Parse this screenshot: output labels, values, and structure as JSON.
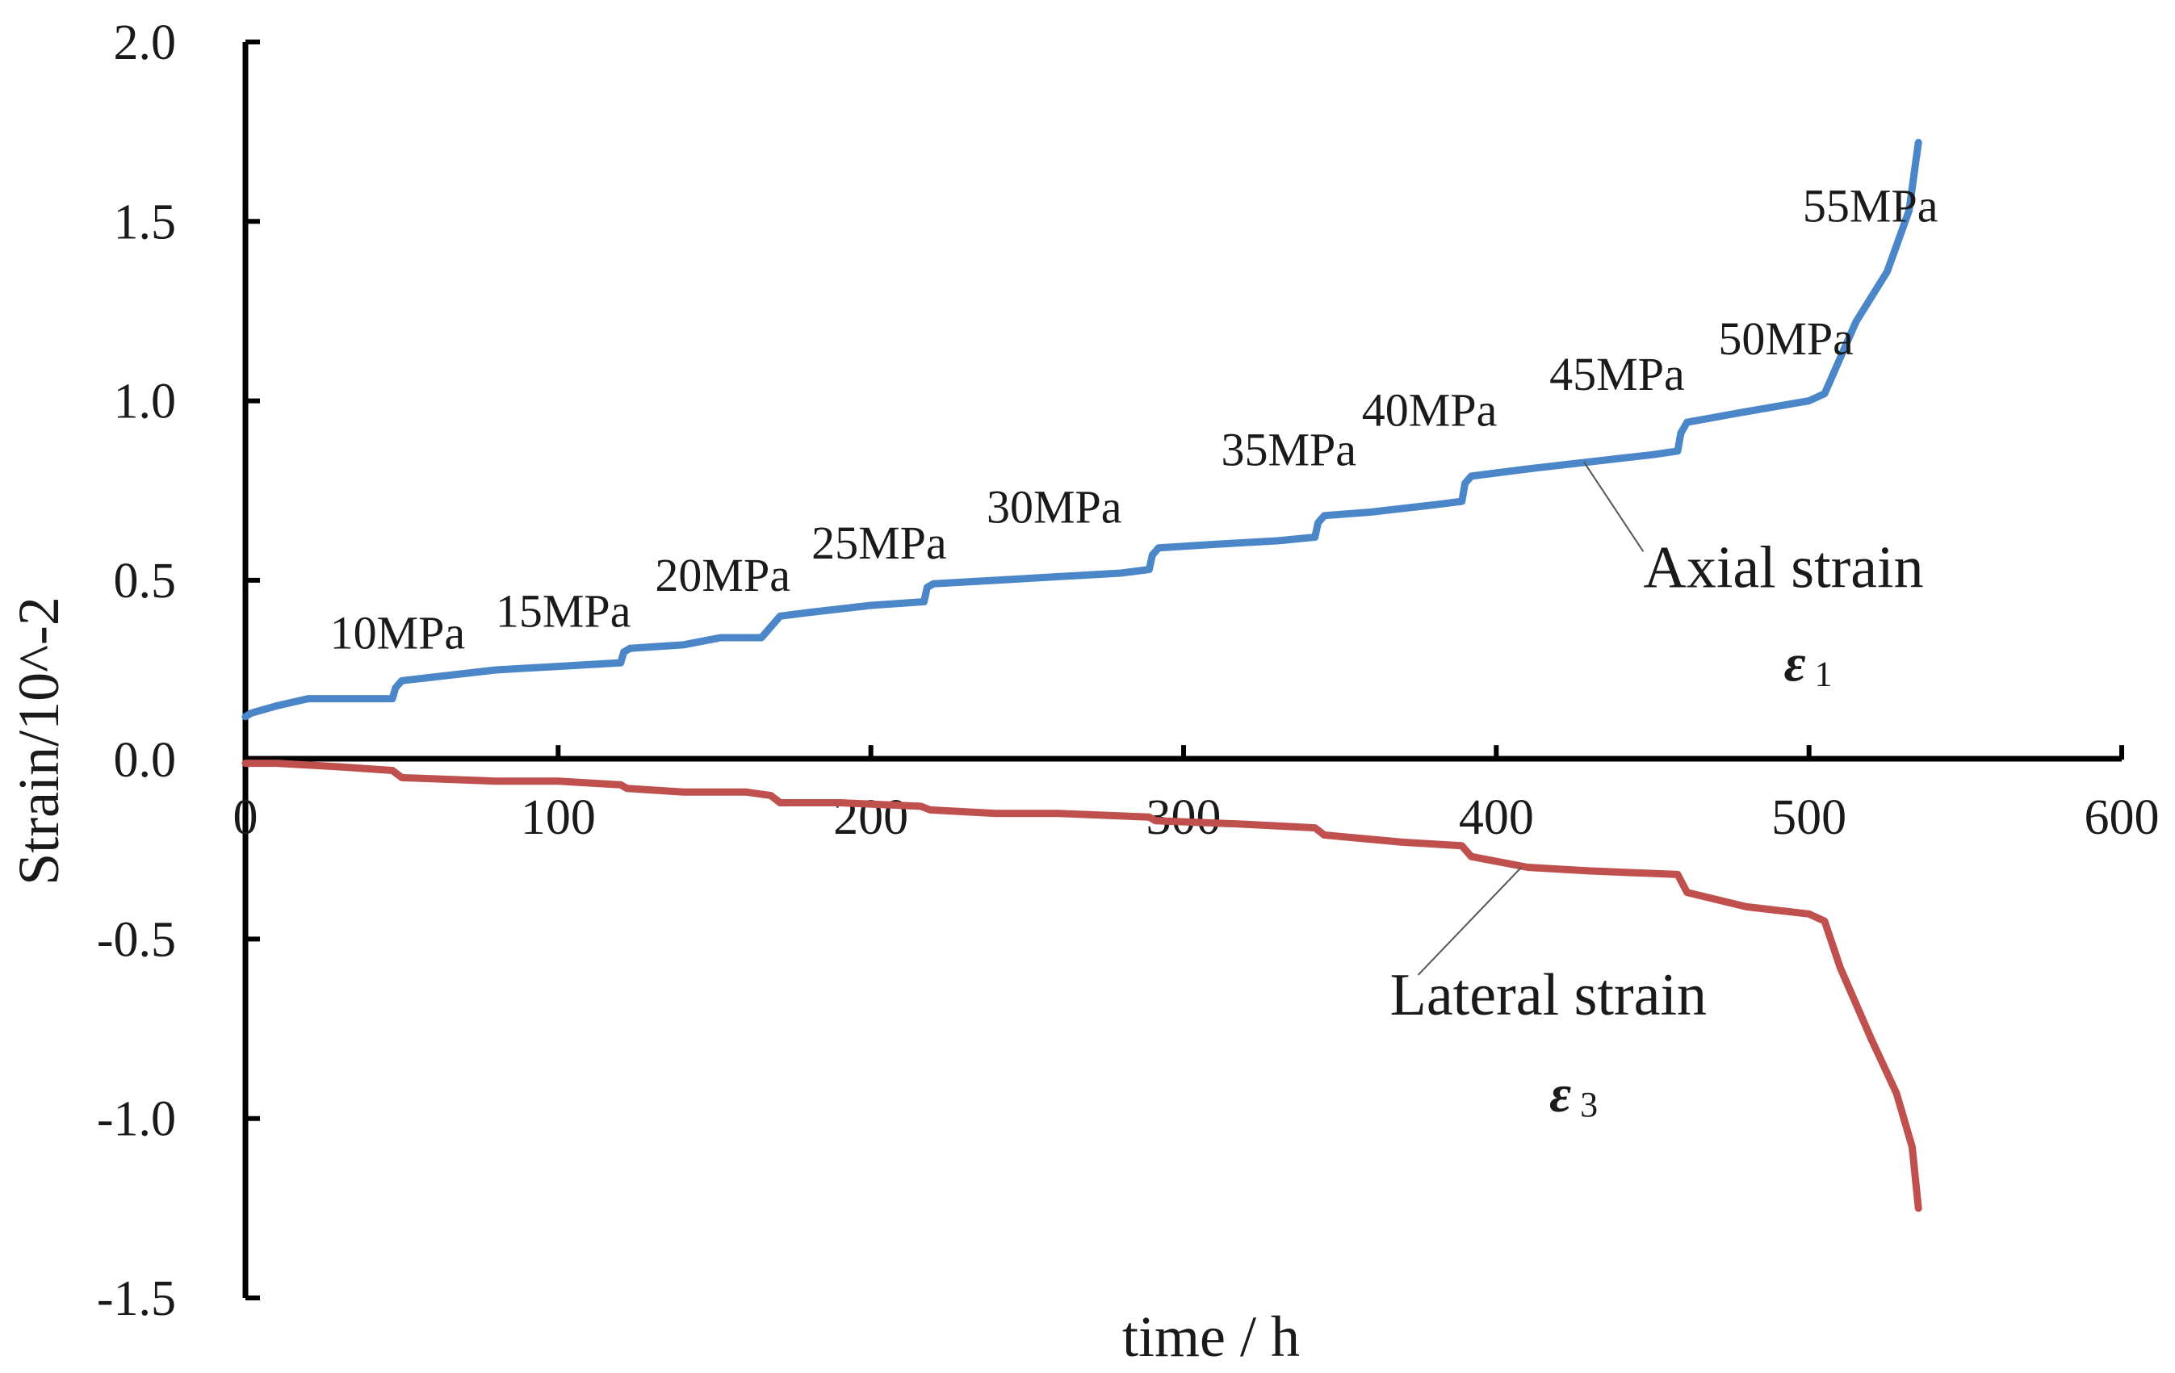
{
  "chart_data": {
    "type": "line",
    "xlabel": "time / h",
    "ylabel": "Strain/10^-2",
    "xlim": [
      0,
      600
    ],
    "ylim": [
      -1.5,
      2.0
    ],
    "x_ticks": [
      "0",
      "100",
      "200",
      "300",
      "400",
      "500",
      "600"
    ],
    "y_ticks": [
      "2.0",
      "1.5",
      "1.0",
      "0.5",
      "0.0",
      "-0.5",
      "-1.0",
      "-1.5"
    ],
    "grid": false,
    "colors": {
      "axial": "#4a86c8",
      "lateral": "#c0504d"
    },
    "series": [
      {
        "name": "Axial strain",
        "symbol": "ε",
        "subscript": "1",
        "x": [
          0,
          2,
          10,
          20,
          28,
          47,
          48,
          50,
          60,
          80,
          100,
          120,
          121,
          123,
          140,
          152,
          165,
          169,
          171,
          180,
          200,
          217,
          218,
          220,
          240,
          260,
          280,
          289,
          290,
          292,
          310,
          330,
          342,
          343,
          345,
          360,
          380,
          389,
          390,
          392,
          410,
          430,
          450,
          458,
          459,
          461,
          480,
          500,
          505,
          508,
          515,
          525,
          532,
          535
        ],
        "values": [
          0.12,
          0.13,
          0.15,
          0.17,
          0.17,
          0.17,
          0.2,
          0.22,
          0.23,
          0.25,
          0.26,
          0.27,
          0.3,
          0.31,
          0.32,
          0.34,
          0.34,
          0.38,
          0.4,
          0.41,
          0.43,
          0.44,
          0.48,
          0.49,
          0.5,
          0.51,
          0.52,
          0.53,
          0.57,
          0.59,
          0.6,
          0.61,
          0.62,
          0.66,
          0.68,
          0.69,
          0.71,
          0.72,
          0.77,
          0.79,
          0.81,
          0.83,
          0.85,
          0.86,
          0.91,
          0.94,
          0.97,
          1.0,
          1.02,
          1.08,
          1.22,
          1.36,
          1.53,
          1.72
        ]
      },
      {
        "name": "Lateral strain",
        "symbol": "ε",
        "subscript": "3",
        "x": [
          0,
          10,
          30,
          47,
          50,
          80,
          100,
          120,
          122,
          140,
          160,
          168,
          171,
          190,
          216,
          219,
          240,
          260,
          289,
          291,
          320,
          342,
          345,
          370,
          389,
          392,
          410,
          430,
          458,
          461,
          480,
          500,
          505,
          510,
          520,
          528,
          533,
          535
        ],
        "values": [
          -0.01,
          -0.01,
          -0.02,
          -0.03,
          -0.05,
          -0.06,
          -0.06,
          -0.07,
          -0.08,
          -0.09,
          -0.09,
          -0.1,
          -0.12,
          -0.12,
          -0.13,
          -0.14,
          -0.15,
          -0.15,
          -0.16,
          -0.17,
          -0.18,
          -0.19,
          -0.21,
          -0.23,
          -0.24,
          -0.27,
          -0.3,
          -0.31,
          -0.32,
          -0.37,
          -0.41,
          -0.43,
          -0.45,
          -0.58,
          -0.78,
          -0.93,
          -1.08,
          -1.25
        ]
      }
    ],
    "annotations": [
      {
        "text": "10MPa",
        "x": 27,
        "y": 0.31
      },
      {
        "text": "15MPa",
        "x": 80,
        "y": 0.37
      },
      {
        "text": "20MPa",
        "x": 131,
        "y": 0.47
      },
      {
        "text": "25MPa",
        "x": 181,
        "y": 0.56
      },
      {
        "text": "30MPa",
        "x": 237,
        "y": 0.66
      },
      {
        "text": "35MPa",
        "x": 312,
        "y": 0.82
      },
      {
        "text": "40MPa",
        "x": 357,
        "y": 0.93
      },
      {
        "text": "45MPa",
        "x": 417,
        "y": 1.03
      },
      {
        "text": "50MPa",
        "x": 471,
        "y": 1.13
      },
      {
        "text": "55MPa",
        "x": 498,
        "y": 1.5
      }
    ],
    "series_labels": [
      {
        "series": 0,
        "text": "Axial strain",
        "x": 447,
        "y": 0.48,
        "leader_from": [
          428,
          0.83
        ],
        "leader_to": [
          447,
          0.58
        ],
        "eps_x": 492,
        "eps_y": 0.22
      },
      {
        "series": 1,
        "text": "Lateral strain",
        "x": 366,
        "y": -0.71,
        "leader_from": [
          408,
          -0.3
        ],
        "leader_to": [
          375,
          -0.6
        ],
        "eps_x": 417,
        "eps_y": -0.98
      }
    ]
  }
}
